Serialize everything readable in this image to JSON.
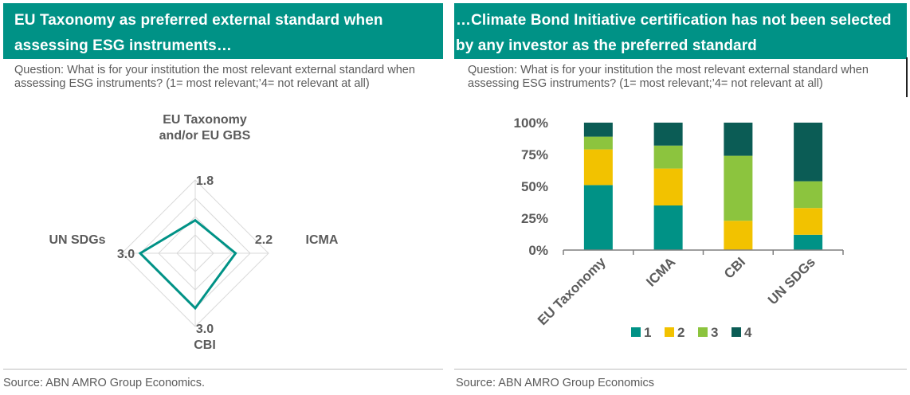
{
  "left": {
    "title": "EU Taxonomy as preferred external standard when assessing ESG instruments…",
    "question": "Question: What is for your institution the most relevant external standard when assessing ESG instruments? (1= most relevant;’4= not relevant at all)",
    "source": "Source: ABN AMRO Group Economics."
  },
  "right": {
    "title": "…Climate Bond Initiative certification has not been selected by any investor as the preferred standard",
    "question": "Question: What is for your institution the most relevant external standard when assessing ESG instruments? (1= most relevant;’4= not relevant at all)",
    "source": "Source: ABN AMRO Group Economics"
  },
  "colors": {
    "teal": "#009286",
    "yellow": "#f2c200",
    "lightgreen": "#8cc43e",
    "darkteal": "#0b5c55",
    "grid": "#d9d9d9",
    "text": "#5b5b5b"
  },
  "chart_data": [
    {
      "type": "radar",
      "title": "",
      "axis_labels": [
        "EU Taxonomy\nand/or EU GBS",
        "ICMA",
        "CBI",
        "UN SDGs"
      ],
      "values": [
        1.8,
        2.2,
        3.0,
        3.0
      ],
      "value_labels": [
        "1.8",
        "2.2",
        "3.0",
        "3.0"
      ],
      "range": [
        0,
        4
      ],
      "grid_levels": 4
    },
    {
      "type": "bar",
      "stacked": true,
      "categories": [
        "EU Taxonomy",
        "ICMA",
        "CBI",
        "UN SDGs"
      ],
      "series": [
        {
          "name": "1",
          "values": [
            51,
            35,
            0,
            12
          ]
        },
        {
          "name": "2",
          "values": [
            28,
            29,
            23,
            21
          ]
        },
        {
          "name": "3",
          "values": [
            10,
            18,
            51,
            21
          ]
        },
        {
          "name": "4",
          "values": [
            11,
            18,
            26,
            46
          ]
        }
      ],
      "yticks": [
        "0%",
        "25%",
        "50%",
        "75%",
        "100%"
      ],
      "ylim": [
        0,
        100
      ],
      "legend": "bottom"
    }
  ]
}
